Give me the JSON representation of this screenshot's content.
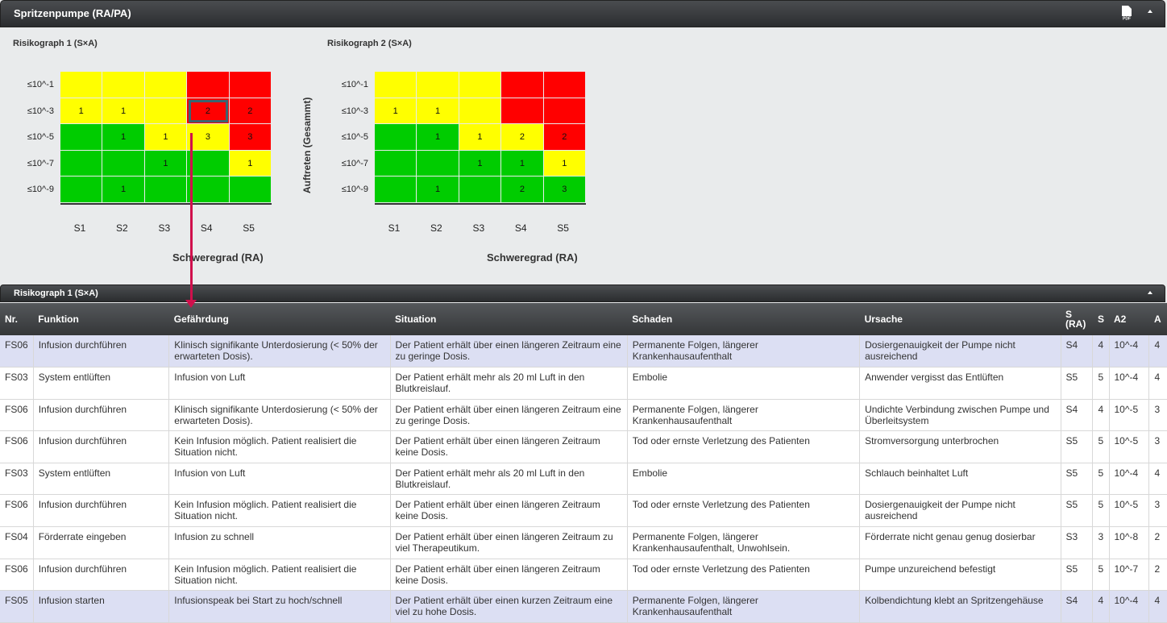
{
  "panel": {
    "title": "Spritzenpumpe (RA/PA)",
    "pdf_icon": "pdf-icon",
    "collapse_icon": "collapse-up-icon"
  },
  "graph1": {
    "title": "Risikograph 1 (S×A)",
    "xaxis_title": "Schweregrad (RA)"
  },
  "graph2": {
    "title": "Risikograph 2 (S×A)",
    "xaxis_title": "Schweregrad (RA)",
    "yaxis_title": "Auftreten (Gesammt)"
  },
  "yticks": [
    "≤10^-1",
    "≤10^-3",
    "≤10^-5",
    "≤10^-7",
    "≤10^-9"
  ],
  "xticks": [
    "S1",
    "S2",
    "S3",
    "S4",
    "S5"
  ],
  "colors": {
    "green": "#00cc00",
    "yellow": "#ffff00",
    "red": "#ff0000",
    "arrow": "#d0104c",
    "highlight_row": "#dcdff3"
  },
  "matrix1": [
    [
      {
        "c": "y",
        "v": ""
      },
      {
        "c": "y",
        "v": ""
      },
      {
        "c": "y",
        "v": ""
      },
      {
        "c": "r",
        "v": ""
      },
      {
        "c": "r",
        "v": ""
      }
    ],
    [
      {
        "c": "y",
        "v": "1"
      },
      {
        "c": "y",
        "v": "1"
      },
      {
        "c": "y",
        "v": ""
      },
      {
        "c": "r",
        "v": "2",
        "sel": true
      },
      {
        "c": "r",
        "v": "2"
      }
    ],
    [
      {
        "c": "g",
        "v": ""
      },
      {
        "c": "g",
        "v": "1"
      },
      {
        "c": "y",
        "v": "1"
      },
      {
        "c": "y",
        "v": "3"
      },
      {
        "c": "r",
        "v": "3"
      }
    ],
    [
      {
        "c": "g",
        "v": ""
      },
      {
        "c": "g",
        "v": ""
      },
      {
        "c": "g",
        "v": "1"
      },
      {
        "c": "g",
        "v": ""
      },
      {
        "c": "y",
        "v": "1"
      }
    ],
    [
      {
        "c": "g",
        "v": ""
      },
      {
        "c": "g",
        "v": "1"
      },
      {
        "c": "g",
        "v": ""
      },
      {
        "c": "g",
        "v": ""
      },
      {
        "c": "g",
        "v": ""
      }
    ]
  ],
  "matrix2": [
    [
      {
        "c": "y",
        "v": ""
      },
      {
        "c": "y",
        "v": ""
      },
      {
        "c": "y",
        "v": ""
      },
      {
        "c": "r",
        "v": ""
      },
      {
        "c": "r",
        "v": ""
      }
    ],
    [
      {
        "c": "y",
        "v": "1"
      },
      {
        "c": "y",
        "v": "1"
      },
      {
        "c": "y",
        "v": ""
      },
      {
        "c": "r",
        "v": ""
      },
      {
        "c": "r",
        "v": ""
      }
    ],
    [
      {
        "c": "g",
        "v": ""
      },
      {
        "c": "g",
        "v": "1"
      },
      {
        "c": "y",
        "v": "1"
      },
      {
        "c": "y",
        "v": "2"
      },
      {
        "c": "r",
        "v": "2"
      }
    ],
    [
      {
        "c": "g",
        "v": ""
      },
      {
        "c": "g",
        "v": ""
      },
      {
        "c": "g",
        "v": "1"
      },
      {
        "c": "g",
        "v": "1"
      },
      {
        "c": "y",
        "v": "1"
      }
    ],
    [
      {
        "c": "g",
        "v": ""
      },
      {
        "c": "g",
        "v": "1"
      },
      {
        "c": "g",
        "v": ""
      },
      {
        "c": "g",
        "v": "2"
      },
      {
        "c": "g",
        "v": "3"
      }
    ]
  ],
  "subpanel": {
    "title": "Risikograph 1 (S×A)",
    "collapse_icon": "collapse-up-icon"
  },
  "table": {
    "headers": [
      "Nr.",
      "Funktion",
      "Gefährdung",
      "Situation",
      "Schaden",
      "Ursache",
      "S (RA)",
      "S",
      "A2",
      "A"
    ],
    "rows": [
      {
        "hl": true,
        "cells": [
          "FS06",
          "Infusion durchführen",
          "Klinisch signifikante Unterdosierung (< 50% der erwarteten Dosis).",
          "Der Patient erhält über einen längeren Zeitraum eine zu geringe Dosis.",
          "Permanente Folgen, längerer Krankenhausaufenthalt",
          "Dosiergenauigkeit der Pumpe nicht ausreichend",
          "S4",
          "4",
          "10^-4",
          "4"
        ]
      },
      {
        "hl": false,
        "cells": [
          "FS03",
          "System entlüften",
          "Infusion von Luft",
          "Der Patient erhält mehr als 20 ml Luft in den Blutkreislauf.",
          "Embolie",
          "Anwender vergisst das Entlüften",
          "S5",
          "5",
          "10^-4",
          "4"
        ]
      },
      {
        "hl": false,
        "cells": [
          "FS06",
          "Infusion durchführen",
          "Klinisch signifikante Unterdosierung (< 50% der erwarteten Dosis).",
          "Der Patient erhält über einen längeren Zeitraum eine zu geringe Dosis.",
          "Permanente Folgen, längerer Krankenhausaufenthalt",
          "Undichte Verbindung zwischen Pumpe und Überleitsystem",
          "S4",
          "4",
          "10^-5",
          "3"
        ]
      },
      {
        "hl": false,
        "cells": [
          "FS06",
          "Infusion durchführen",
          "Kein Infusion möglich. Patient realisiert die Situation nicht.",
          "Der Patient erhält über einen längeren Zeitraum keine Dosis.",
          "Tod oder ernste Verletzung des Patienten",
          "Stromversorgung unterbrochen",
          "S5",
          "5",
          "10^-5",
          "3"
        ]
      },
      {
        "hl": false,
        "cells": [
          "FS03",
          "System entlüften",
          "Infusion von Luft",
          "Der Patient erhält mehr als 20 ml Luft in den Blutkreislauf.",
          "Embolie",
          "Schlauch beinhaltet Luft",
          "S5",
          "5",
          "10^-4",
          "4"
        ]
      },
      {
        "hl": false,
        "cells": [
          "FS06",
          "Infusion durchführen",
          "Kein Infusion möglich. Patient realisiert die Situation nicht.",
          "Der Patient erhält über einen längeren Zeitraum keine Dosis.",
          "Tod oder ernste Verletzung des Patienten",
          "Dosiergenauigkeit der Pumpe nicht ausreichend",
          "S5",
          "5",
          "10^-5",
          "3"
        ]
      },
      {
        "hl": false,
        "cells": [
          "FS04",
          "Förderrate eingeben",
          "Infusion zu schnell",
          "Der Patient erhält über einen längeren Zeitraum zu viel Therapeutikum.",
          "Permanente Folgen, längerer Krankenhausaufenthalt, Unwohlsein.",
          "Förderrate nicht genau genug dosierbar",
          "S3",
          "3",
          "10^-8",
          "2"
        ]
      },
      {
        "hl": false,
        "cells": [
          "FS06",
          "Infusion durchführen",
          "Kein Infusion möglich. Patient realisiert die Situation nicht.",
          "Der Patient erhält über einen längeren Zeitraum keine Dosis.",
          "Tod oder ernste Verletzung des Patienten",
          "Pumpe unzureichend befestigt",
          "S5",
          "5",
          "10^-7",
          "2"
        ]
      },
      {
        "hl": true,
        "cells": [
          "FS05",
          "Infusion starten",
          "Infusionspeak bei Start zu hoch/schnell",
          "Der Patient erhält über einen kurzen Zeitraum eine viel zu hohe Dosis.",
          "Permanente Folgen, längerer Krankenhausaufenthalt",
          "Kolbendichtung klebt an Spritzengehäuse",
          "S4",
          "4",
          "10^-4",
          "4"
        ]
      }
    ]
  }
}
